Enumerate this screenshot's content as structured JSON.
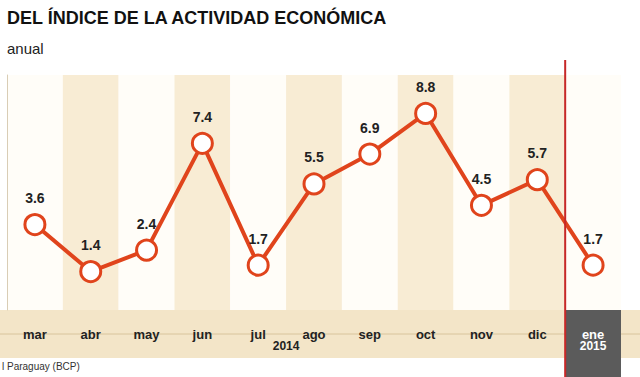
{
  "chart_data": {
    "type": "line",
    "title": "DEL ÍNDICE DE LA ACTIVIDAD ECONÓMICA",
    "subtitle": "anual",
    "source": "l Paraguay (BCP)",
    "categories": [
      "mar",
      "abr",
      "may",
      "jun",
      "jul",
      "ago",
      "sep",
      "oct",
      "nov",
      "dic",
      "ene"
    ],
    "values": [
      3.6,
      1.4,
      2.4,
      7.4,
      1.7,
      5.5,
      6.9,
      8.8,
      4.5,
      5.7,
      1.7
    ],
    "groups": [
      {
        "label": "2014",
        "from": "mar",
        "to": "dic"
      },
      {
        "label": "2015",
        "from": "ene",
        "to": "ene"
      }
    ],
    "color": "#e0441c",
    "marker": "circle",
    "line_style": "solid",
    "ylim": [
      -0.4,
      10.6
    ],
    "grid": false,
    "data_labels": true,
    "tick_labels": "x"
  }
}
